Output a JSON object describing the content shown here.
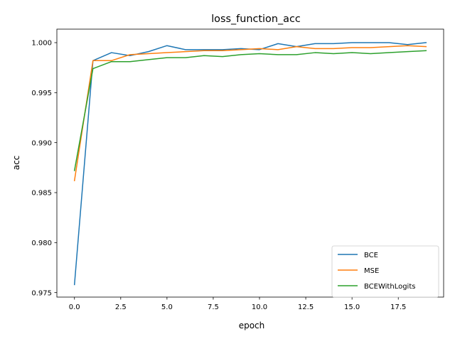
{
  "chart_data": {
    "type": "line",
    "title": "loss_function_acc",
    "xlabel": "epoch",
    "ylabel": "acc",
    "xlim": [
      -0.95,
      19.95
    ],
    "ylim": [
      0.97455,
      1.00135
    ],
    "xticks": [
      {
        "value": 0.0,
        "label": "0.0"
      },
      {
        "value": 2.5,
        "label": "2.5"
      },
      {
        "value": 5.0,
        "label": "5.0"
      },
      {
        "value": 7.5,
        "label": "7.5"
      },
      {
        "value": 10.0,
        "label": "10.0"
      },
      {
        "value": 12.5,
        "label": "12.5"
      },
      {
        "value": 15.0,
        "label": "15.0"
      },
      {
        "value": 17.5,
        "label": "17.5"
      }
    ],
    "yticks": [
      {
        "value": 0.975,
        "label": "0.975"
      },
      {
        "value": 0.98,
        "label": "0.980"
      },
      {
        "value": 0.985,
        "label": "0.985"
      },
      {
        "value": 0.99,
        "label": "0.990"
      },
      {
        "value": 0.995,
        "label": "0.995"
      },
      {
        "value": 1.0,
        "label": "1.000"
      }
    ],
    "grid": false,
    "legend_position": "lower-right",
    "x": [
      0,
      1,
      2,
      3,
      4,
      5,
      6,
      7,
      8,
      9,
      10,
      11,
      12,
      13,
      14,
      15,
      16,
      17,
      18,
      19
    ],
    "series": [
      {
        "name": "BCE",
        "color": "#1f77b4",
        "values": [
          0.9758,
          0.9982,
          0.999,
          0.9987,
          0.9991,
          0.9997,
          0.9993,
          0.9993,
          0.9993,
          0.9994,
          0.9993,
          0.9999,
          0.9996,
          0.9999,
          0.9999,
          1.0,
          1.0,
          1.0,
          0.9998,
          1.0
        ]
      },
      {
        "name": "MSE",
        "color": "#ff7f0e",
        "values": [
          0.9862,
          0.9982,
          0.9982,
          0.9988,
          0.9989,
          0.999,
          0.9991,
          0.9992,
          0.9992,
          0.9993,
          0.9994,
          0.9993,
          0.9996,
          0.9994,
          0.9994,
          0.9995,
          0.9995,
          0.9996,
          0.9997,
          0.9996
        ]
      },
      {
        "name": "BCEWithLogits",
        "color": "#2ca02c",
        "values": [
          0.9872,
          0.9974,
          0.9981,
          0.9981,
          0.9983,
          0.9985,
          0.9985,
          0.9987,
          0.9986,
          0.9988,
          0.9989,
          0.9988,
          0.9988,
          0.999,
          0.9989,
          0.999,
          0.9989,
          0.999,
          0.9991,
          0.9992
        ]
      }
    ]
  }
}
